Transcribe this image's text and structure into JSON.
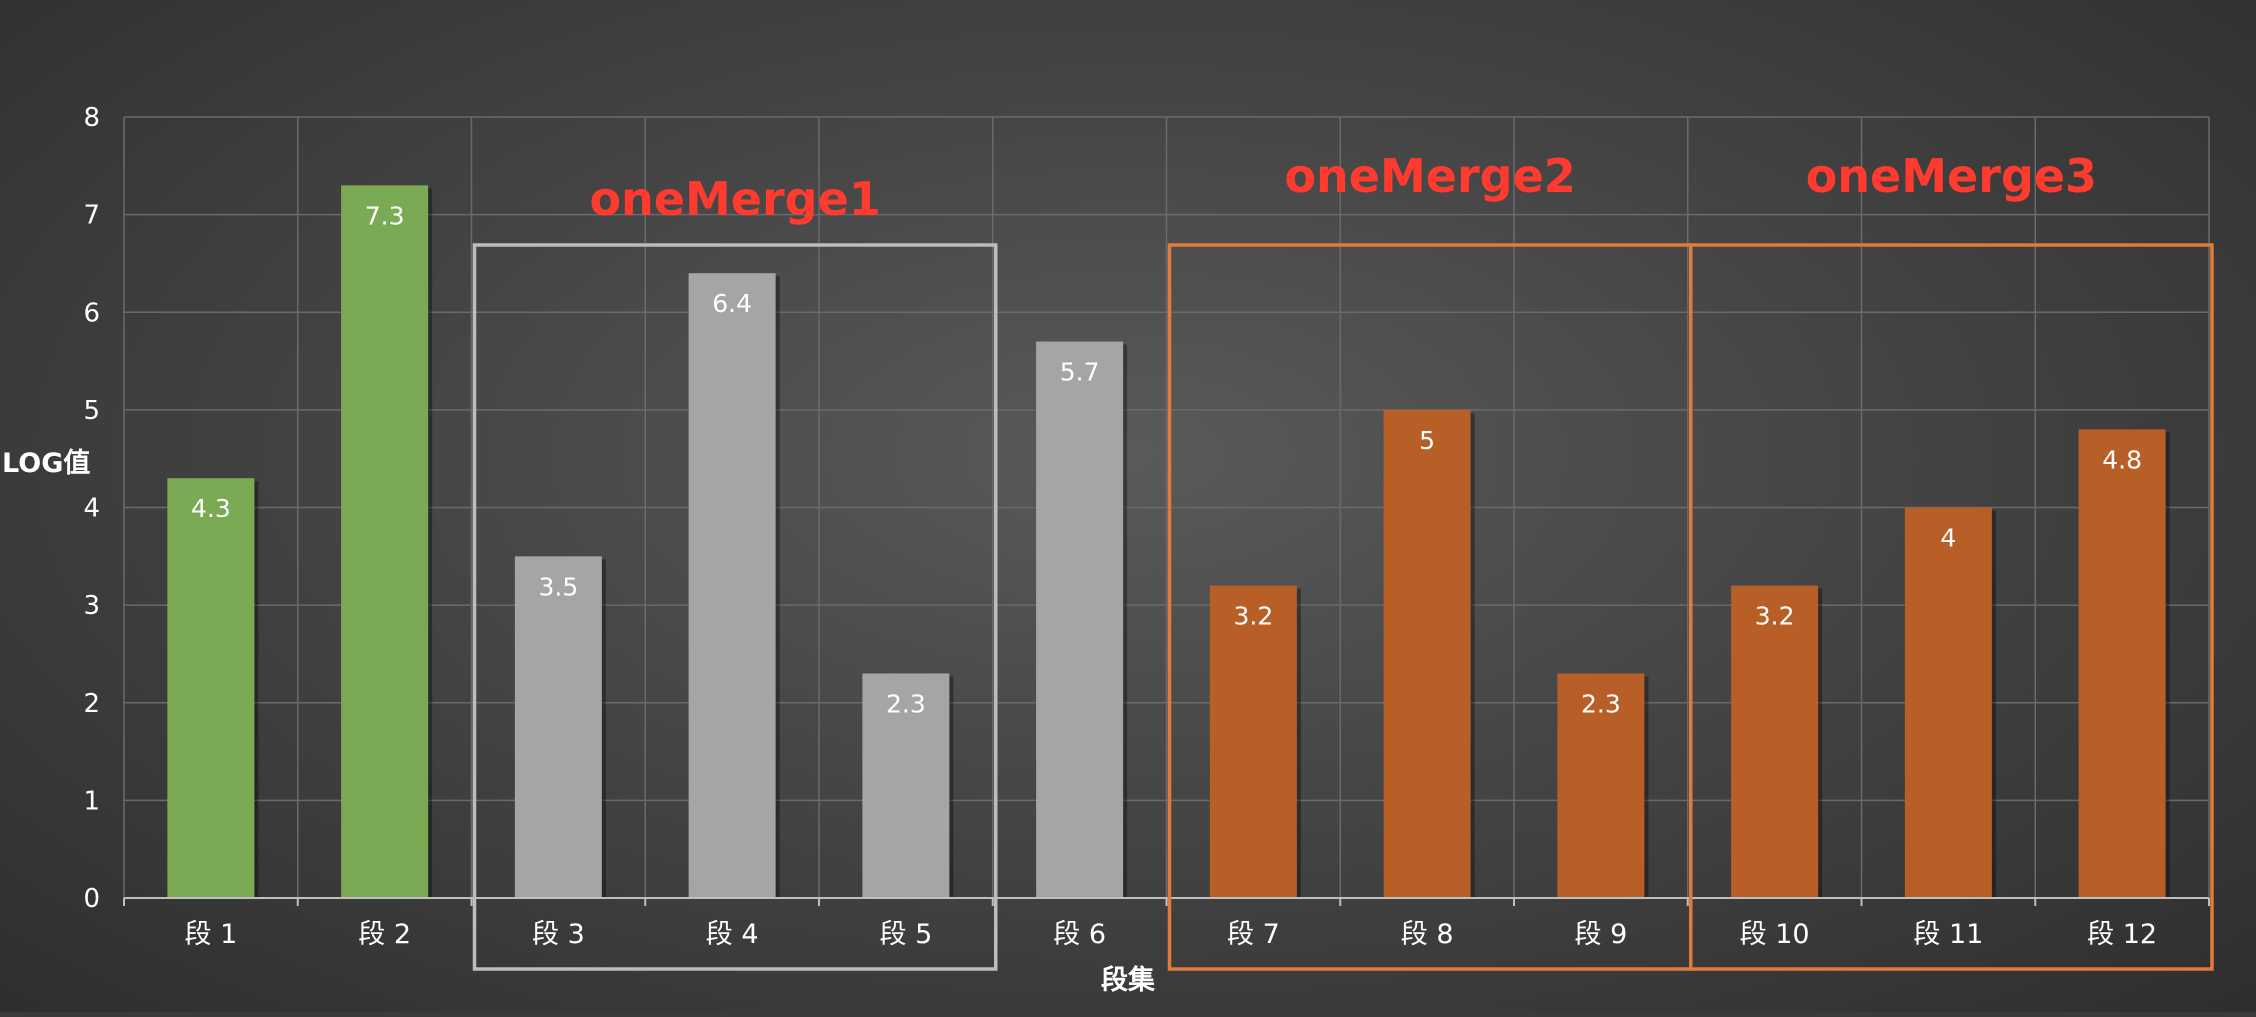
{
  "chart_data": {
    "type": "bar",
    "title": "",
    "xlabel": "段集",
    "ylabel": "LOG值",
    "ylim": [
      0,
      8
    ],
    "yticks": [
      "0",
      "1",
      "2",
      "3",
      "4",
      "5",
      "6",
      "7",
      "8"
    ],
    "grid": true,
    "categories": [
      "段 1",
      "段 2",
      "段 3",
      "段 4",
      "段 5",
      "段 6",
      "段 7",
      "段 8",
      "段 9",
      "段 10",
      "段 11",
      "段 12"
    ],
    "values": [
      4.3,
      7.3,
      3.5,
      6.4,
      2.3,
      5.7,
      3.2,
      5,
      2.3,
      3.2,
      4,
      4.8
    ],
    "data_labels": [
      "4.3",
      "7.3",
      "3.5",
      "6.4",
      "2.3",
      "5.7",
      "3.2",
      "5",
      "2.3",
      "3.2",
      "4",
      "4.8"
    ],
    "bar_colors": [
      "#7aab54",
      "#7aab54",
      "#a5a5a5",
      "#a5a5a5",
      "#a5a5a5",
      "#a5a5a5",
      "#b85f28",
      "#b85f28",
      "#b85f28",
      "#b85f28",
      "#b85f28",
      "#b85f28"
    ],
    "groups": [
      {
        "label": "oneMerge1",
        "start": 2,
        "end": 4,
        "border_color": "#bdbdbd"
      },
      {
        "label": "oneMerge2",
        "start": 6,
        "end": 8,
        "border_color": "#e07b3c"
      },
      {
        "label": "oneMerge3",
        "start": 9,
        "end": 11,
        "border_color": "#e07b3c"
      }
    ],
    "colors": {
      "gridline": "#6a6a6a",
      "axis": "#bfbfbf",
      "group_title": "#ff3b2f",
      "text": "#ffffff"
    }
  }
}
